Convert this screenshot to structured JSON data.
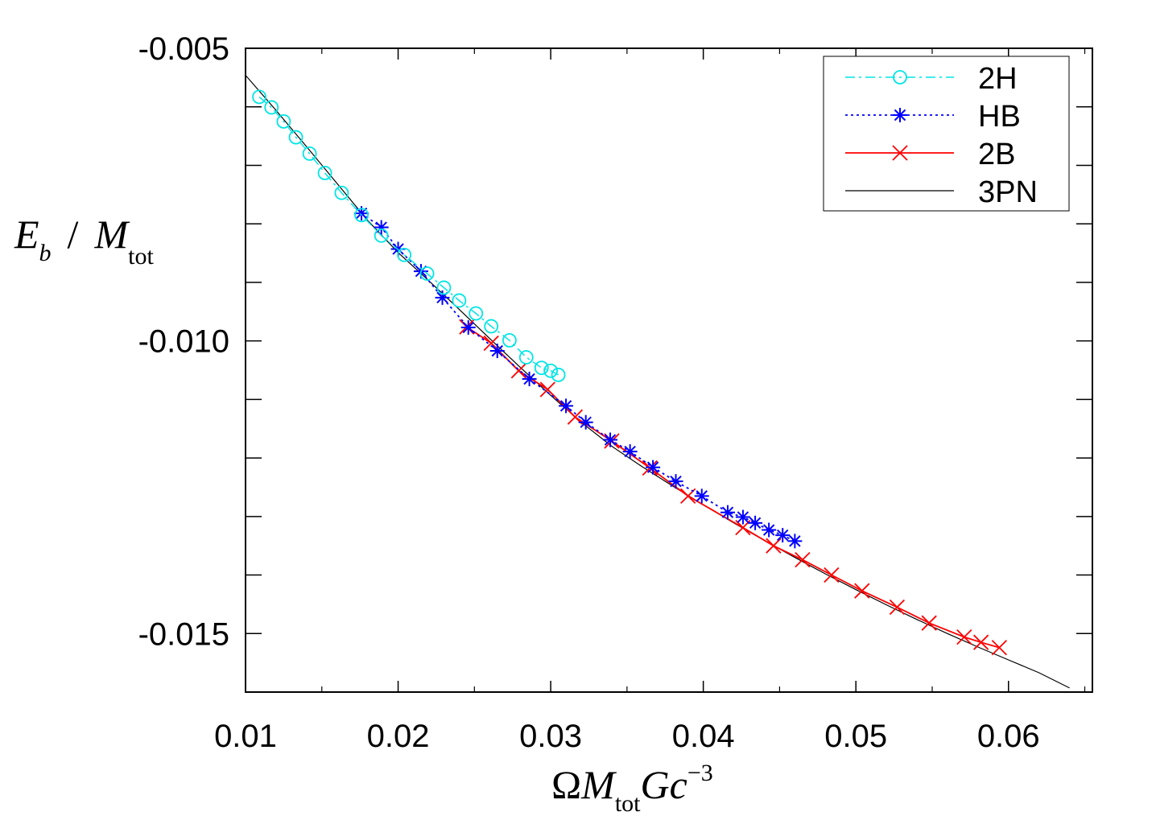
{
  "chart_data": {
    "type": "line",
    "title": "",
    "xlabel": {
      "prefix": "Ω",
      "main": "M",
      "sub": "tot",
      "rest": "Gc",
      "sup": "−3"
    },
    "ylabel": {
      "main": "E",
      "sub": "b",
      "slash": "/",
      "main2": "M",
      "sub2": "tot"
    },
    "xlim": [
      0.01,
      0.0655
    ],
    "ylim": [
      -0.016,
      -0.005
    ],
    "x_ticks": [
      0.01,
      0.02,
      0.03,
      0.04,
      0.05,
      0.06
    ],
    "x_tick_labels": [
      "0.01",
      "0.02",
      "0.03",
      "0.04",
      "0.05",
      "0.06"
    ],
    "y_ticks": [
      -0.005,
      -0.01,
      -0.015
    ],
    "y_tick_labels": [
      "-0.005",
      "-0.010",
      "-0.015"
    ],
    "legend_position": "top-right",
    "series": [
      {
        "name": "2H",
        "color": "#00e5e5",
        "marker": "circle",
        "line": "dashdot",
        "x": [
          0.0109,
          0.0117,
          0.0125,
          0.0133,
          0.0142,
          0.0152,
          0.0163,
          0.0176,
          0.0189,
          0.0204,
          0.0219,
          0.023,
          0.024,
          0.0251,
          0.0261,
          0.0273,
          0.0284,
          0.0294,
          0.03,
          0.0305
        ],
        "y": [
          -0.00583,
          -0.00601,
          -0.00625,
          -0.00652,
          -0.0068,
          -0.00713,
          -0.00747,
          -0.00785,
          -0.0082,
          -0.00853,
          -0.00885,
          -0.00909,
          -0.00931,
          -0.00953,
          -0.00975,
          -0.00999,
          -0.01028,
          -0.01046,
          -0.01051,
          -0.01058
        ]
      },
      {
        "name": "HB",
        "color": "#0000ff",
        "marker": "asterisk",
        "line": "dotted",
        "x": [
          0.0176,
          0.0189,
          0.02,
          0.0215,
          0.0229,
          0.0246,
          0.0265,
          0.0286,
          0.031,
          0.0323,
          0.0339,
          0.0352,
          0.0367,
          0.0382,
          0.0399,
          0.0416,
          0.0426,
          0.0434,
          0.0443,
          0.0452,
          0.046
        ],
        "y": [
          -0.00782,
          -0.00806,
          -0.00843,
          -0.00881,
          -0.00926,
          -0.00977,
          -0.01017,
          -0.01065,
          -0.01111,
          -0.01139,
          -0.01169,
          -0.01189,
          -0.01216,
          -0.0124,
          -0.01265,
          -0.01293,
          -0.01301,
          -0.01311,
          -0.01323,
          -0.01332,
          -0.01342
        ]
      },
      {
        "name": "2B",
        "color": "#ff0000",
        "marker": "cross",
        "line": "solid",
        "x": [
          0.0245,
          0.0261,
          0.0279,
          0.0298,
          0.0316,
          0.034,
          0.0365,
          0.039,
          0.0426,
          0.0446,
          0.0465,
          0.0484,
          0.0504,
          0.0527,
          0.0548,
          0.0571,
          0.0582,
          0.0594
        ],
        "y": [
          -0.00976,
          -0.01004,
          -0.01051,
          -0.01083,
          -0.0113,
          -0.01171,
          -0.01217,
          -0.01265,
          -0.01319,
          -0.0135,
          -0.01374,
          -0.014,
          -0.01427,
          -0.01455,
          -0.01482,
          -0.01506,
          -0.01515,
          -0.01524
        ]
      },
      {
        "name": "3PN",
        "color": "#000000",
        "marker": "none",
        "line": "solid-thin",
        "x": [
          0.01,
          0.012,
          0.014,
          0.016,
          0.018,
          0.02,
          0.022,
          0.024,
          0.026,
          0.028,
          0.03,
          0.032,
          0.034,
          0.036,
          0.038,
          0.04,
          0.042,
          0.044,
          0.046,
          0.048,
          0.05,
          0.052,
          0.054,
          0.056,
          0.058,
          0.06,
          0.062,
          0.064
        ],
        "y": [
          -0.00546,
          -0.00606,
          -0.00668,
          -0.00731,
          -0.00794,
          -0.00849,
          -0.00897,
          -0.00946,
          -0.00996,
          -0.01045,
          -0.01093,
          -0.01139,
          -0.0118,
          -0.01215,
          -0.01248,
          -0.0128,
          -0.01311,
          -0.01341,
          -0.0137,
          -0.01398,
          -0.01425,
          -0.01451,
          -0.01476,
          -0.015,
          -0.01523,
          -0.01545,
          -0.01567,
          -0.01593
        ]
      }
    ]
  }
}
